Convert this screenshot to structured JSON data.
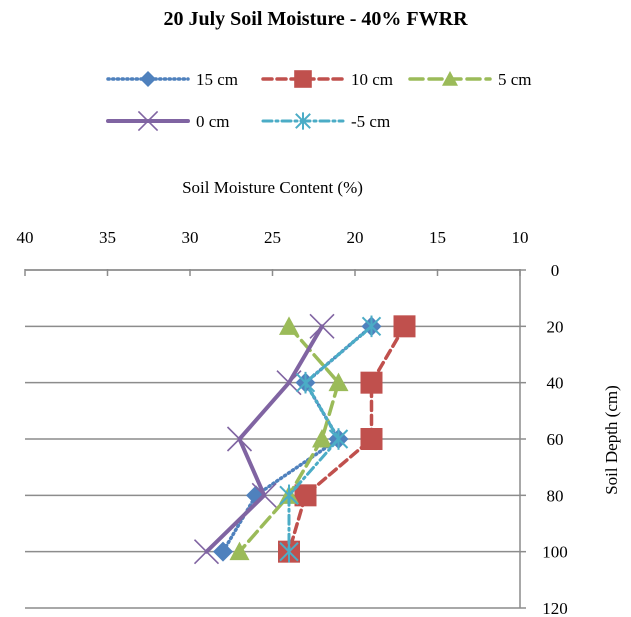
{
  "chart_data": {
    "type": "line",
    "title": "20 July Soil Moisture - 40% FWRR",
    "xlabel": "Soil Moisture Content (%)",
    "ylabel": "Soil Depth (cm)",
    "xlim": [
      40,
      10
    ],
    "x_reversed": true,
    "x_axis_position": "top",
    "ylim": [
      0,
      120
    ],
    "y_reversed": true,
    "y_axis_position": "right",
    "x_ticks": [
      40,
      35,
      30,
      25,
      20,
      15,
      10
    ],
    "y_ticks": [
      0,
      20,
      40,
      60,
      80,
      100,
      120
    ],
    "grid": "horizontal",
    "legend_position": "top",
    "series": [
      {
        "name": "15 cm",
        "color": "#4F81BD",
        "dash": "dotted",
        "marker": "diamond",
        "points": [
          [
            19,
            20
          ],
          [
            23,
            40
          ],
          [
            21,
            60
          ],
          [
            26,
            80
          ],
          [
            28,
            100
          ]
        ]
      },
      {
        "name": "10 cm",
        "color": "#C0504D",
        "dash": "dashed",
        "marker": "square",
        "points": [
          [
            17,
            20
          ],
          [
            19,
            40
          ],
          [
            19,
            60
          ],
          [
            23,
            80
          ],
          [
            24,
            100
          ]
        ]
      },
      {
        "name": "5 cm",
        "color": "#9BBB59",
        "dash": "long-dash",
        "marker": "triangle",
        "points": [
          [
            24,
            20
          ],
          [
            21,
            40
          ],
          [
            22,
            60
          ],
          [
            24,
            80
          ],
          [
            27,
            100
          ]
        ]
      },
      {
        "name": "0 cm",
        "color": "#8064A2",
        "dash": "solid",
        "marker": "x",
        "points": [
          [
            22,
            20
          ],
          [
            24,
            40
          ],
          [
            27,
            60
          ],
          [
            25.5,
            80
          ],
          [
            29,
            100
          ]
        ]
      },
      {
        "name": "-5 cm",
        "color": "#4BACC6",
        "dash": "dash-dot",
        "marker": "star",
        "points": [
          [
            19,
            20
          ],
          [
            23,
            40
          ],
          [
            21,
            60
          ],
          [
            24,
            80
          ],
          [
            24,
            100
          ]
        ]
      }
    ]
  }
}
